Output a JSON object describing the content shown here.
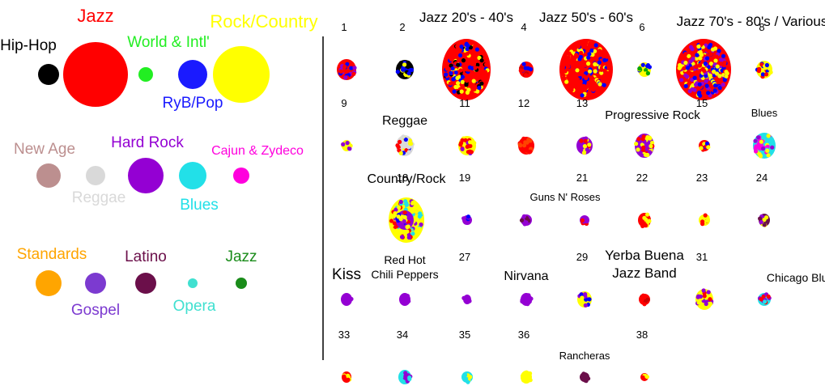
{
  "legend": {
    "groups": [
      [
        {
          "label": "Hip-Hop",
          "color": "#000000",
          "size": 13
        },
        {
          "label": "Jazz",
          "color": "#ff0000",
          "size": 40
        },
        {
          "label": "World & Intl'",
          "color": "#22ee22",
          "size": 9
        },
        {
          "label": "RyB/Pop",
          "color": "#1a1aff",
          "size": 18
        },
        {
          "label": "Rock/Country",
          "color": "#ffff00",
          "size": 35
        }
      ],
      [
        {
          "label": "New Age",
          "color": "#bc8f8f",
          "size": 15
        },
        {
          "label": "Reggae",
          "color": "#d9d9d9",
          "size": 12
        },
        {
          "label": "Hard Rock",
          "color": "#9400d3",
          "size": 22
        },
        {
          "label": "Blues",
          "color": "#22e0e8",
          "size": 17
        },
        {
          "label": "Cajun & Zydeco",
          "color": "#ff00dd",
          "size": 10
        }
      ],
      [
        {
          "label": "Standards",
          "color": "#ffa500",
          "size": 16
        },
        {
          "label": "Gospel",
          "color": "#7c3ad0",
          "size": 13
        },
        {
          "label": "Latino",
          "color": "#6b0f4a",
          "size": 13
        },
        {
          "label": "Opera",
          "color": "#40e0d0",
          "size": 6
        },
        {
          "label": "Jazz",
          "color": "#1a8c1a",
          "size": 7
        }
      ]
    ]
  },
  "clusters": [
    {
      "label": "1",
      "rx": 12,
      "ry": 13,
      "colors": [
        "#ff0000",
        "#0000ff",
        "#9400d3"
      ]
    },
    {
      "label": "2",
      "rx": 11,
      "ry": 12,
      "colors": [
        "#000000",
        "#0000ff",
        "#ffff00"
      ]
    },
    {
      "label": "Jazz 20's - 40's",
      "rx": 30,
      "ry": 38,
      "colors": [
        "#ff0000",
        "#ff0000",
        "#ff0000",
        "#ffff00",
        "#0000ff",
        "#000000"
      ]
    },
    {
      "label": "4",
      "rx": 9,
      "ry": 10,
      "colors": [
        "#ff0000",
        "#cc0000",
        "#0000ff"
      ]
    },
    {
      "label": "Jazz 50's - 60's",
      "rx": 33,
      "ry": 38,
      "colors": [
        "#ff0000",
        "#ff0000",
        "#ff0000",
        "#ffff00",
        "#0000ff"
      ]
    },
    {
      "label": "6",
      "rx": 8,
      "ry": 9,
      "colors": [
        "#ffff00",
        "#0000ff",
        "#00aa00"
      ]
    },
    {
      "label": "Jazz 70's - 80's / Various",
      "rx": 34,
      "ry": 38,
      "colors": [
        "#ff0000",
        "#ffff00",
        "#0000ff",
        "#9400d3"
      ]
    },
    {
      "label": "8",
      "rx": 10,
      "ry": 11,
      "colors": [
        "#ffff00",
        "#0000ff",
        "#ff0000"
      ]
    },
    {
      "label": "9",
      "rx": 6,
      "ry": 7,
      "colors": [
        "#ffff00",
        "#9400d3"
      ]
    },
    {
      "label": "Reggae",
      "rx": 11,
      "ry": 13,
      "colors": [
        "#d9d9d9",
        "#ffff00",
        "#0000ff",
        "#ff0000"
      ]
    },
    {
      "label": "11",
      "rx": 11,
      "ry": 12,
      "colors": [
        "#ffff00",
        "#ff0000",
        "#9400d3"
      ]
    },
    {
      "label": "12",
      "rx": 10,
      "ry": 11,
      "colors": [
        "#ff0000",
        "#ff4400"
      ]
    },
    {
      "label": "13",
      "rx": 10,
      "ry": 11,
      "colors": [
        "#9400d3",
        "#ffff00",
        "#ff0000"
      ]
    },
    {
      "label": "Progressive Rock",
      "rx": 12,
      "ry": 15,
      "colors": [
        "#9400d3",
        "#ffff00",
        "#ff0000"
      ]
    },
    {
      "label": "15",
      "rx": 7,
      "ry": 7,
      "colors": [
        "#ff0000",
        "#0000ff",
        "#ffff00"
      ]
    },
    {
      "label": "Blues",
      "rx": 14,
      "ry": 16,
      "colors": [
        "#22e0e8",
        "#ffff00",
        "#ff00dd",
        "#9400d3"
      ]
    },
    {
      "label": "Country/Rock",
      "rx": 22,
      "ry": 28,
      "colors": [
        "#ffff00",
        "#ffff00",
        "#ff0000",
        "#9400d3",
        "#22e0e8"
      ]
    },
    {
      "label": "18",
      "rx": 11,
      "ry": 12,
      "colors": [
        "#9400d3",
        "#ff0000",
        "#0000ff",
        "#ffff00"
      ]
    },
    {
      "label": "19",
      "rx": 6,
      "ry": 6,
      "colors": [
        "#9400d3",
        "#0000ff"
      ]
    },
    {
      "label": "Guns N' Roses",
      "rx": 7,
      "ry": 7,
      "colors": [
        "#9400d3",
        "#6b0f4a"
      ]
    },
    {
      "label": "21",
      "rx": 6,
      "ry": 6,
      "colors": [
        "#9400d3",
        "#ff0000"
      ]
    },
    {
      "label": "22",
      "rx": 8,
      "ry": 9,
      "colors": [
        "#ff0000",
        "#ffff00"
      ]
    },
    {
      "label": "23",
      "rx": 7,
      "ry": 7,
      "colors": [
        "#ffff00",
        "#ff0000"
      ]
    },
    {
      "label": "24",
      "rx": 7,
      "ry": 8,
      "colors": [
        "#6b0f4a",
        "#9400d3",
        "#ffff00"
      ]
    },
    {
      "label": "Kiss",
      "rx": 7,
      "ry": 8,
      "colors": [
        "#9400d3"
      ]
    },
    {
      "label": "Red Hot Chili Peppers",
      "rx": 7,
      "ry": 8,
      "colors": [
        "#9400d3"
      ]
    },
    {
      "label": "27",
      "rx": 5,
      "ry": 6,
      "colors": [
        "#9400d3"
      ]
    },
    {
      "label": "Nirvana",
      "rx": 7,
      "ry": 8,
      "colors": [
        "#9400d3"
      ]
    },
    {
      "label": "29",
      "rx": 9,
      "ry": 10,
      "colors": [
        "#ffff00",
        "#9400d3",
        "#0000ff"
      ]
    },
    {
      "label": "Yerba Buena Jazz Band",
      "rx": 7,
      "ry": 7,
      "colors": [
        "#ff0000",
        "#cc0000"
      ]
    },
    {
      "label": "31",
      "rx": 11,
      "ry": 13,
      "colors": [
        "#ffff00",
        "#ff0000",
        "#9400d3"
      ]
    },
    {
      "label": "Chicago Blues",
      "rx": 8,
      "ry": 8,
      "colors": [
        "#22e0e8",
        "#ff0000",
        "#9400d3"
      ]
    },
    {
      "label": "33",
      "rx": 6,
      "ry": 7,
      "colors": [
        "#ff0000",
        "#ffff00"
      ]
    },
    {
      "label": "34",
      "rx": 8,
      "ry": 9,
      "colors": [
        "#22e0e8",
        "#9400d3"
      ]
    },
    {
      "label": "35",
      "rx": 7,
      "ry": 7,
      "colors": [
        "#22e0e8",
        "#ffff00"
      ]
    },
    {
      "label": "36",
      "rx": 7,
      "ry": 8,
      "colors": [
        "#ffff00"
      ]
    },
    {
      "label": "Rancheras",
      "rx": 6,
      "ry": 6,
      "colors": [
        "#6b0f4a"
      ]
    },
    {
      "label": "38",
      "rx": 5,
      "ry": 5,
      "colors": [
        "#ff0000",
        "#ffff00"
      ]
    }
  ]
}
